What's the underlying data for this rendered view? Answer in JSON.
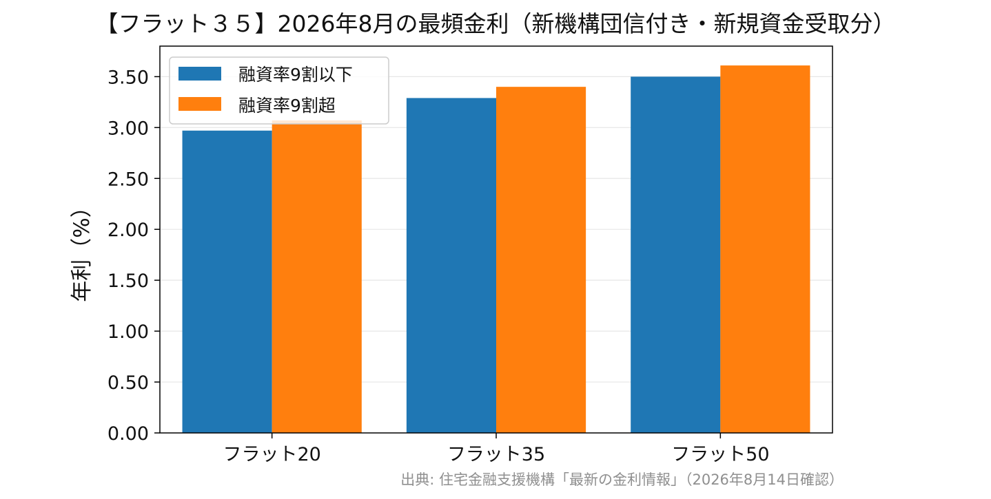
{
  "chart_data": {
    "type": "bar",
    "title": "【フラット３５】2026年8月の最頻金利（新機構団信付き・新規資金受取分）",
    "categories": [
      "フラット20",
      "フラット35",
      "フラット50"
    ],
    "series": [
      {
        "name": "融資率9割以下",
        "values": [
          2.97,
          3.29,
          3.5
        ],
        "color": "#1f77b4"
      },
      {
        "name": "融資率9割超",
        "values": [
          3.07,
          3.4,
          3.61
        ],
        "color": "#ff7f0e"
      }
    ],
    "xlabel": "",
    "ylabel": "年利（%）",
    "ylim": [
      0,
      3.8
    ],
    "yticks": [
      "0.00",
      "0.50",
      "1.00",
      "1.50",
      "2.00",
      "2.50",
      "3.00",
      "3.50"
    ],
    "grid": "y",
    "legend_position": "top-left",
    "source_note": "出典: 住宅金融支援機構「最新の金利情報」（2026年8月14日確認）"
  }
}
